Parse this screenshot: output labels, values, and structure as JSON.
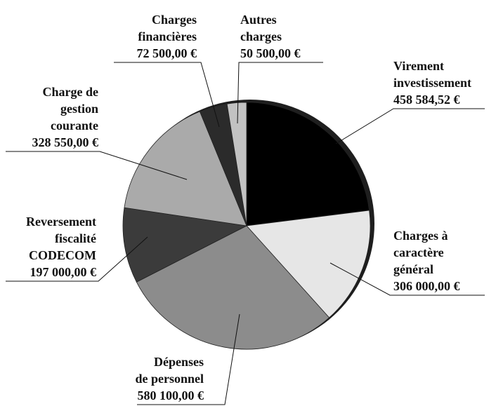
{
  "chart_data": {
    "type": "pie",
    "categories": [
      "Virement\ninvestissement",
      "Charges à\ncaractère\ngénéral",
      "Dépenses\nde personnel",
      "Reversement\nfiscalité\nCODECOM",
      "Charge de\ngestion\ncourante",
      "Charges\nfinancières",
      "Autres\ncharges"
    ],
    "values": [
      458584.52,
      306000,
      580100,
      197000,
      328550,
      72500,
      50500
    ],
    "value_labels": [
      "458 584,52 €",
      "306 000,00 €",
      "580 100,00 €",
      "197 000,00 €",
      "328 550,00 €",
      "72 500,00 €",
      "50 500,00 €"
    ],
    "colors": [
      "#000000",
      "#e6e6e6",
      "#8c8c8c",
      "#3b3b3b",
      "#aaaaaa",
      "#2b2b2b",
      "#c2c2c2"
    ]
  }
}
